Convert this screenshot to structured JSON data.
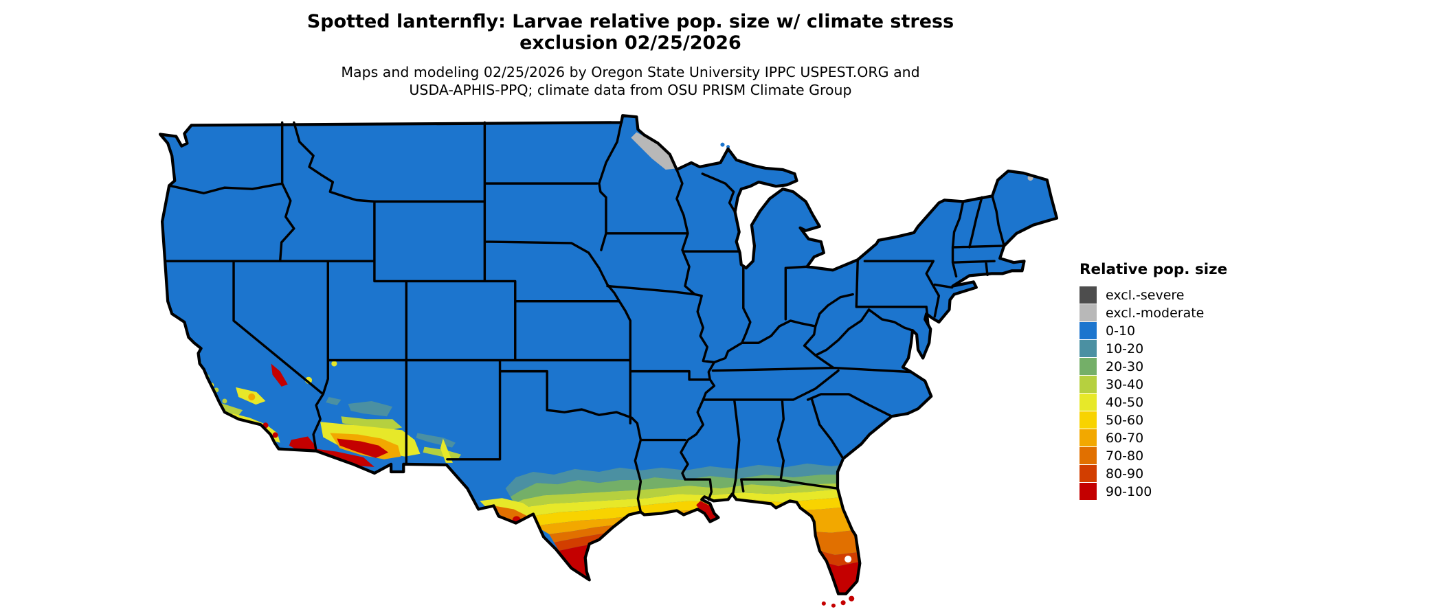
{
  "title": {
    "line1": "Spotted lanternfly: Larvae relative pop. size w/ climate stress",
    "line2": "exclusion 02/25/2026"
  },
  "subtitle": {
    "line1": "Maps and modeling 02/25/2026 by Oregon State University IPPC USPEST.ORG and",
    "line2": "USDA-APHIS-PPQ; climate data from OSU PRISM Climate Group"
  },
  "legend": {
    "title": "Relative pop. size",
    "items": [
      {
        "label": "excl.-severe",
        "color": "#4d4d4d"
      },
      {
        "label": "excl.-moderate",
        "color": "#b8b8b8"
      },
      {
        "label": "0-10",
        "color": "#1c75ce"
      },
      {
        "label": "10-20",
        "color": "#4b90a2"
      },
      {
        "label": "20-30",
        "color": "#74af68"
      },
      {
        "label": "30-40",
        "color": "#b6d03f"
      },
      {
        "label": "40-50",
        "color": "#e7e829"
      },
      {
        "label": "50-60",
        "color": "#f8d300"
      },
      {
        "label": "60-70",
        "color": "#f2a800"
      },
      {
        "label": "70-80",
        "color": "#e17000"
      },
      {
        "label": "80-90",
        "color": "#d23e00"
      },
      {
        "label": "90-100",
        "color": "#c40000"
      }
    ]
  },
  "map": {
    "border_color": "#000000",
    "water_color": "#ffffff",
    "high_value_regions": [
      "southern Texas",
      "Florida peninsula",
      "Gulf Coast",
      "southern Arizona",
      "southern California"
    ],
    "excluded_moderate_region": "northeastern Minnesota",
    "dominant_class": "0-10"
  }
}
